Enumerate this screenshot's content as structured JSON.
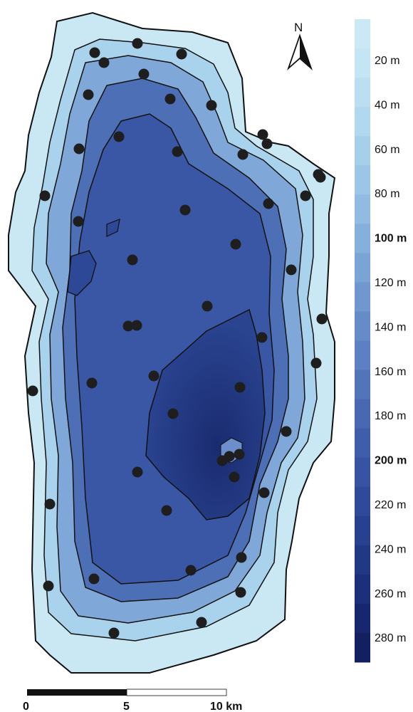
{
  "map": {
    "north_label": "N",
    "depth_contour_interval_m": 10,
    "major_contours_m": [
      20,
      100,
      200
    ],
    "sample_point_color": "#1e1e1e",
    "contour_line_color": "#111111",
    "sample_points_count": 48
  },
  "legend": {
    "color_scale": [
      "#cbe9f5",
      "#c4e5f3",
      "#bbdff1",
      "#b0d8ee",
      "#a6d0ea",
      "#9cc6e6",
      "#91bbe1",
      "#86b0dc",
      "#7ba4d6",
      "#7098cf",
      "#668cc8",
      "#5c80c1",
      "#5275b9",
      "#4869b1",
      "#3f5ea9",
      "#3654a1",
      "#2e4a98",
      "#27418f",
      "#213885",
      "#1b2f7a",
      "#16276f",
      "#12205f"
    ],
    "ticks": [
      {
        "label": "20 m",
        "bold": false
      },
      {
        "label": "40 m",
        "bold": false
      },
      {
        "label": "60 m",
        "bold": false
      },
      {
        "label": "80 m",
        "bold": false
      },
      {
        "label": "100 m",
        "bold": true
      },
      {
        "label": "120 m",
        "bold": false
      },
      {
        "label": "140 m",
        "bold": false
      },
      {
        "label": "160 m",
        "bold": false
      },
      {
        "label": "180 m",
        "bold": false
      },
      {
        "label": "200 m",
        "bold": true
      },
      {
        "label": "220 m",
        "bold": false
      },
      {
        "label": "240 m",
        "bold": false
      },
      {
        "label": "260 m",
        "bold": false
      },
      {
        "label": "280 m",
        "bold": false
      }
    ]
  },
  "scale_bar": {
    "labels": [
      "0",
      "5",
      "10 km"
    ]
  }
}
